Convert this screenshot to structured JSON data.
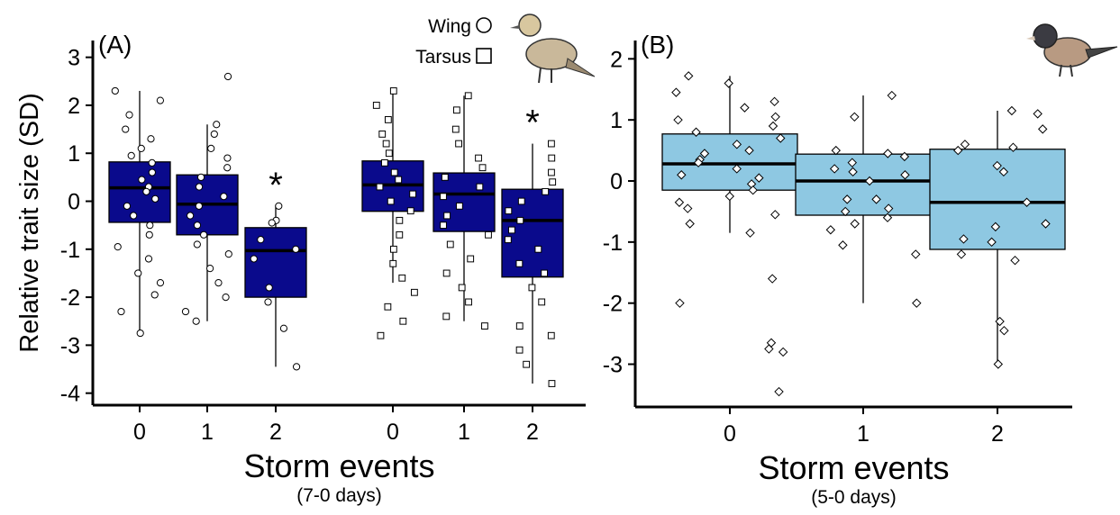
{
  "chart_data": [
    {
      "type": "box",
      "panel_label": "(A)",
      "ylabel": "Relative trait size (SD)",
      "xlabel": "Storm events",
      "xlabel_sub": "(7-0 days)",
      "ylim": [
        -4.25,
        3.35
      ],
      "yticks": [
        -4,
        -3,
        -2,
        -1,
        0,
        1,
        2,
        3
      ],
      "categories": [
        "0",
        "1",
        "2",
        "0",
        "1",
        "2"
      ],
      "annotations": [
        "*",
        "*"
      ],
      "series": [
        {
          "name": "Wing",
          "marker": "circle",
          "color": "#0a0a8c",
          "boxes": [
            {
              "whislo": -2.75,
              "q1": -0.44,
              "med": 0.28,
              "q3": 0.82,
              "whishi": 2.3,
              "points": [
                2.3,
                2.1,
                1.8,
                1.5,
                1.3,
                1.1,
                0.95,
                0.8,
                0.6,
                0.45,
                0.3,
                0.2,
                0.05,
                -0.1,
                -0.3,
                -0.5,
                -0.7,
                -0.95,
                -1.2,
                -1.5,
                -1.7,
                -1.95,
                -2.3,
                -2.75
              ]
            },
            {
              "whislo": -2.5,
              "q1": -0.7,
              "med": -0.06,
              "q3": 0.55,
              "whishi": 1.6,
              "points": [
                2.6,
                1.6,
                1.4,
                1.1,
                0.9,
                0.7,
                0.5,
                0.3,
                0.1,
                -0.1,
                -0.3,
                -0.5,
                -0.7,
                -0.9,
                -1.1,
                -1.4,
                -1.7,
                -2.0,
                -2.3,
                -2.5
              ]
            },
            {
              "whislo": -3.45,
              "q1": -2.0,
              "med": -1.03,
              "q3": -0.55,
              "whishi": -0.1,
              "points": [
                -0.1,
                -0.4,
                -0.45,
                -0.8,
                -1.0,
                -1.2,
                -1.8,
                -2.1,
                -2.65,
                -3.45
              ]
            }
          ]
        },
        {
          "name": "Tarsus",
          "marker": "square",
          "color": "#0a0a8c",
          "boxes": [
            {
              "whislo": -1.7,
              "q1": -0.21,
              "med": 0.34,
              "q3": 0.84,
              "whishi": 2.3,
              "points": [
                2.3,
                2.0,
                1.7,
                1.4,
                1.2,
                1.0,
                0.8,
                0.6,
                0.45,
                0.3,
                0.15,
                0.0,
                -0.2,
                -0.4,
                -0.7,
                -1.0,
                -1.3,
                -1.6,
                -1.9,
                -2.2,
                -2.5,
                -2.8
              ]
            },
            {
              "whislo": -2.5,
              "q1": -0.63,
              "med": 0.15,
              "q3": 0.59,
              "whishi": 2.2,
              "points": [
                2.2,
                1.9,
                1.5,
                1.2,
                0.9,
                0.7,
                0.5,
                0.3,
                0.1,
                -0.1,
                -0.3,
                -0.5,
                -0.7,
                -0.9,
                -1.2,
                -1.5,
                -1.8,
                -2.1,
                -2.4,
                -2.6
              ]
            },
            {
              "whislo": -3.8,
              "q1": -1.58,
              "med": -0.4,
              "q3": 0.25,
              "whishi": 1.2,
              "points": [
                1.2,
                0.9,
                0.6,
                0.4,
                0.2,
                0.0,
                -0.2,
                -0.4,
                -0.6,
                -0.8,
                -1.0,
                -1.3,
                -1.5,
                -1.8,
                -2.1,
                -2.6,
                -2.8,
                -3.1,
                -3.4,
                -3.8
              ]
            }
          ]
        }
      ]
    },
    {
      "type": "box",
      "panel_label": "(B)",
      "xlabel": "Storm events",
      "xlabel_sub": "(5-0 days)",
      "ylim": [
        -3.7,
        2.3
      ],
      "yticks": [
        -3,
        -2,
        -1,
        0,
        1,
        2
      ],
      "categories": [
        "0",
        "1",
        "2"
      ],
      "series": [
        {
          "marker": "diamond",
          "color": "#8ec8e2",
          "boxes": [
            {
              "whislo": -0.85,
              "q1": -0.15,
              "med": 0.28,
              "q3": 0.77,
              "whishi": 1.72,
              "points": [
                1.72,
                1.6,
                1.45,
                1.3,
                1.2,
                1.05,
                1.0,
                0.9,
                0.8,
                0.7,
                0.6,
                0.5,
                0.45,
                0.35,
                0.3,
                0.2,
                0.1,
                0.05,
                -0.05,
                -0.15,
                -0.25,
                -0.35,
                -0.45,
                -0.55,
                -0.7,
                -0.85,
                -1.6,
                -2.0,
                -2.65,
                -2.75,
                -2.8,
                -3.45
              ]
            },
            {
              "whislo": -2.0,
              "q1": -0.56,
              "med": 0.0,
              "q3": 0.44,
              "whishi": 1.4,
              "points": [
                1.4,
                1.05,
                0.5,
                0.45,
                0.4,
                0.3,
                0.2,
                0.15,
                0.1,
                0.0,
                -0.3,
                -0.3,
                -0.45,
                -0.5,
                -0.6,
                -0.7,
                -0.8,
                -1.05,
                -1.2,
                -2.0
              ]
            },
            {
              "whislo": -3.0,
              "q1": -1.12,
              "med": -0.35,
              "q3": 0.52,
              "whishi": 1.15,
              "points": [
                1.15,
                1.1,
                0.85,
                0.6,
                0.55,
                0.5,
                0.25,
                0.15,
                -0.35,
                -0.7,
                -0.75,
                -0.95,
                -1.0,
                -1.2,
                -1.3,
                -2.3,
                -2.45,
                -3.0
              ]
            }
          ]
        }
      ]
    }
  ]
}
